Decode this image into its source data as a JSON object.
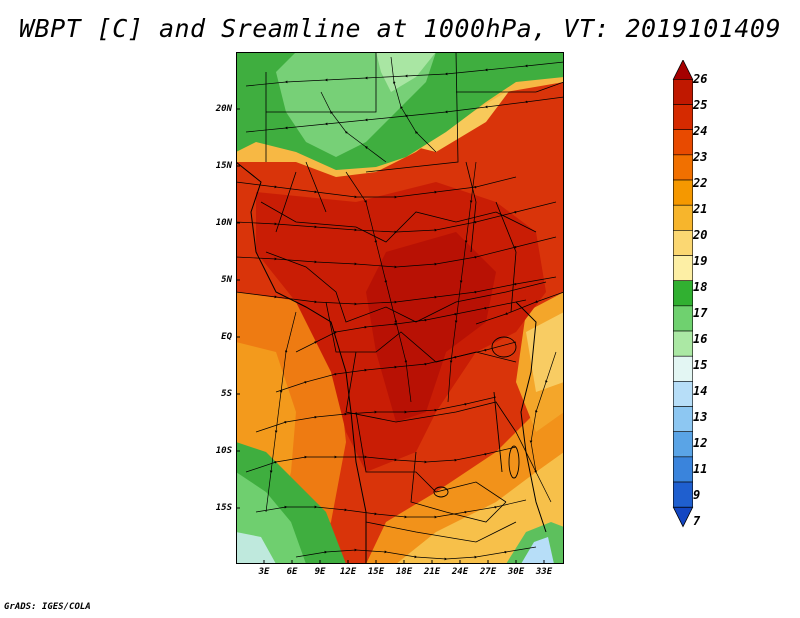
{
  "title": "WBPT [C] and Sreamline at 1000hPa, VT: 2019101409",
  "credit": "GrADS: IGES/COLA",
  "lat_labels": [
    "20N",
    "15N",
    "10N",
    "5N",
    "EQ",
    "5S",
    "10S",
    "15S"
  ],
  "lon_labels": [
    "3E",
    "6E",
    "9E",
    "12E",
    "15E",
    "18E",
    "21E",
    "24E",
    "27E",
    "30E",
    "33E"
  ],
  "colorbar": {
    "labels": [
      "26",
      "25",
      "24",
      "23",
      "22",
      "21",
      "20",
      "19",
      "18",
      "17",
      "16",
      "15",
      "14",
      "13",
      "12",
      "11",
      "9",
      "7"
    ],
    "colors": [
      "#a50000",
      "#c01800",
      "#d52a00",
      "#e84a00",
      "#f17000",
      "#f59800",
      "#f7b52c",
      "#fbd772",
      "#fdefa5",
      "#31b031",
      "#6fd16f",
      "#abe8a4",
      "#e3f6f3",
      "#b7def8",
      "#8dc7f2",
      "#5aa4e6",
      "#3a84dc",
      "#1f5fcf",
      "#1346c2"
    ]
  },
  "map": {
    "extent": {
      "lon_min": 0,
      "lon_max": 35,
      "lat_min": -20,
      "lat_max": 23
    },
    "field": "Wet-bulb potential temperature",
    "units": "C",
    "level": "1000hPa",
    "valid_time": "2019101409"
  }
}
